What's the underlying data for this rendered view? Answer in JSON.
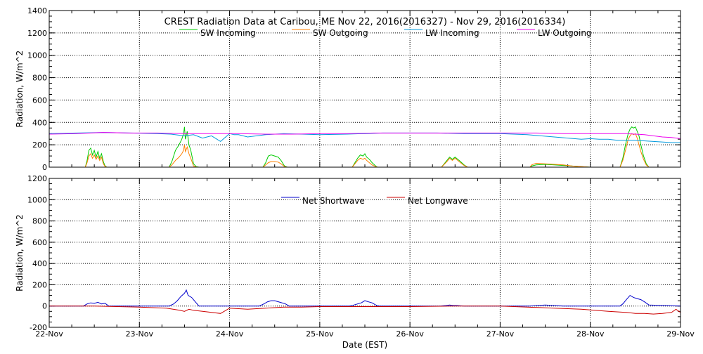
{
  "chart_data": [
    {
      "type": "line",
      "title": "CREST Radiation Data at Caribou, ME   Nov 22, 2016(2016327) - Nov 29, 2016(2016334)",
      "xlabel": "",
      "ylabel": "Radiation, W/m^2",
      "ylim": [
        0,
        1400
      ],
      "yticks": [
        0,
        200,
        400,
        600,
        800,
        1000,
        1200,
        1400
      ],
      "xlim_days": [
        0,
        7
      ],
      "grid": true,
      "legend": "top-center",
      "series": [
        {
          "name": "SW Incoming",
          "color": "#00cc00",
          "x": [
            0.4,
            0.42,
            0.44,
            0.46,
            0.48,
            0.5,
            0.52,
            0.54,
            0.56,
            0.58,
            0.6,
            0.62,
            0.64,
            1.33,
            1.36,
            1.4,
            1.44,
            1.47,
            1.49,
            1.5,
            1.51,
            1.53,
            1.55,
            1.57,
            1.6,
            1.63,
            1.66,
            2.37,
            2.4,
            2.43,
            2.46,
            2.5,
            2.54,
            2.57,
            2.61,
            2.64,
            3.36,
            3.39,
            3.42,
            3.45,
            3.48,
            3.5,
            3.52,
            3.55,
            3.58,
            3.62,
            3.64,
            4.35,
            4.38,
            4.41,
            4.44,
            4.47,
            4.5,
            4.53,
            4.56,
            4.6,
            4.64,
            5.33,
            5.35,
            5.4,
            5.5,
            5.6,
            5.7,
            5.8,
            5.9,
            6.0,
            6.33,
            6.36,
            6.39,
            6.42,
            6.44,
            6.46,
            6.48,
            6.5,
            6.52,
            6.54,
            6.56,
            6.59,
            6.62,
            6.65
          ],
          "y": [
            0,
            60,
            150,
            170,
            110,
            150,
            90,
            140,
            80,
            120,
            50,
            10,
            0,
            0,
            50,
            150,
            200,
            250,
            300,
            360,
            250,
            320,
            200,
            150,
            30,
            5,
            0,
            0,
            40,
            100,
            110,
            100,
            90,
            60,
            10,
            0,
            0,
            40,
            80,
            110,
            100,
            120,
            90,
            70,
            40,
            10,
            0,
            0,
            30,
            60,
            90,
            70,
            90,
            70,
            50,
            20,
            0,
            0,
            10,
            20,
            25,
            20,
            15,
            10,
            5,
            0,
            0,
            80,
            200,
            300,
            340,
            360,
            350,
            360,
            320,
            280,
            200,
            100,
            30,
            0
          ]
        },
        {
          "name": "SW Outgoing",
          "color": "#ff8000",
          "x": [
            0.4,
            0.42,
            0.44,
            0.46,
            0.48,
            0.5,
            0.52,
            0.54,
            0.56,
            0.58,
            0.6,
            0.62,
            0.64,
            1.33,
            1.36,
            1.4,
            1.44,
            1.47,
            1.49,
            1.5,
            1.51,
            1.53,
            1.55,
            1.57,
            1.6,
            1.63,
            1.66,
            2.37,
            2.4,
            2.43,
            2.46,
            2.5,
            2.54,
            2.57,
            2.61,
            2.64,
            3.36,
            3.39,
            3.42,
            3.45,
            3.48,
            3.5,
            3.52,
            3.55,
            3.58,
            3.62,
            3.64,
            4.35,
            4.38,
            4.41,
            4.44,
            4.47,
            4.5,
            4.53,
            4.56,
            4.6,
            4.64,
            5.33,
            5.35,
            5.4,
            5.5,
            5.6,
            5.7,
            5.8,
            5.9,
            6.0,
            6.33,
            6.36,
            6.39,
            6.42,
            6.44,
            6.46,
            6.48,
            6.5,
            6.52,
            6.54,
            6.56,
            6.59,
            6.62,
            6.65
          ],
          "y": [
            0,
            40,
            100,
            120,
            80,
            110,
            70,
            100,
            60,
            90,
            30,
            5,
            0,
            0,
            20,
            60,
            90,
            120,
            150,
            200,
            140,
            180,
            120,
            80,
            10,
            2,
            0,
            0,
            20,
            40,
            50,
            50,
            45,
            30,
            5,
            0,
            0,
            30,
            60,
            80,
            70,
            80,
            60,
            40,
            20,
            5,
            0,
            0,
            25,
            50,
            80,
            60,
            80,
            60,
            40,
            15,
            0,
            0,
            20,
            35,
            30,
            25,
            20,
            10,
            5,
            0,
            0,
            60,
            150,
            250,
            280,
            300,
            290,
            300,
            260,
            200,
            140,
            70,
            20,
            0
          ]
        },
        {
          "name": "LW Incoming",
          "color": "#0099dd",
          "x": [
            0.0,
            0.3,
            0.6,
            0.9,
            1.2,
            1.35,
            1.5,
            1.6,
            1.7,
            1.8,
            1.9,
            2.0,
            2.05,
            2.1,
            2.2,
            2.4,
            2.6,
            2.8,
            3.0,
            3.3,
            3.5,
            3.7,
            4.0,
            4.3,
            4.6,
            5.0,
            5.3,
            5.6,
            5.9,
            6.0,
            6.1,
            6.2,
            6.3,
            6.5,
            6.7,
            6.9,
            7.0
          ],
          "y": [
            300,
            305,
            310,
            305,
            300,
            295,
            280,
            290,
            260,
            280,
            230,
            300,
            290,
            290,
            270,
            290,
            300,
            295,
            290,
            295,
            300,
            305,
            305,
            305,
            300,
            300,
            290,
            270,
            250,
            255,
            250,
            250,
            240,
            240,
            230,
            220,
            220
          ]
        },
        {
          "name": "LW Outgoing",
          "color": "#ee00ee",
          "x": [
            0.0,
            0.3,
            0.6,
            0.9,
            1.2,
            1.5,
            1.8,
            2.1,
            2.4,
            2.7,
            3.0,
            3.3,
            3.6,
            3.9,
            4.2,
            4.5,
            4.8,
            5.1,
            5.4,
            5.7,
            6.0,
            6.2,
            6.4,
            6.6,
            6.8,
            6.9,
            7.0
          ],
          "y": [
            295,
            300,
            310,
            305,
            305,
            300,
            300,
            300,
            295,
            295,
            300,
            300,
            305,
            305,
            305,
            305,
            305,
            305,
            305,
            300,
            300,
            300,
            300,
            290,
            270,
            265,
            255
          ]
        }
      ]
    },
    {
      "type": "line",
      "title": "",
      "xlabel": "Date (EST)",
      "ylabel": "Radiation, W/m^2",
      "ylim": [
        -200,
        1200
      ],
      "yticks": [
        -200,
        0,
        200,
        400,
        600,
        800,
        1000,
        1200
      ],
      "xlim_days": [
        0,
        7
      ],
      "categories": [
        "22-Nov",
        "23-Nov",
        "24-Nov",
        "25-Nov",
        "26-Nov",
        "27-Nov",
        "28-Nov",
        "29-Nov"
      ],
      "grid": true,
      "legend": "top-center",
      "series": [
        {
          "name": "Net Shortwave",
          "color": "#0000cc",
          "x": [
            0.0,
            0.38,
            0.42,
            0.46,
            0.5,
            0.54,
            0.58,
            0.62,
            0.66,
            1.0,
            1.33,
            1.38,
            1.42,
            1.46,
            1.5,
            1.52,
            1.54,
            1.58,
            1.62,
            1.66,
            2.0,
            2.33,
            2.38,
            2.42,
            2.46,
            2.5,
            2.56,
            2.62,
            2.66,
            3.0,
            3.33,
            3.38,
            3.42,
            3.46,
            3.5,
            3.54,
            3.58,
            3.62,
            3.66,
            4.0,
            4.33,
            4.4,
            4.44,
            4.48,
            4.52,
            4.6,
            5.0,
            5.33,
            5.5,
            5.7,
            6.0,
            6.33,
            6.36,
            6.4,
            6.44,
            6.48,
            6.52,
            6.56,
            6.6,
            6.65,
            7.0
          ],
          "y": [
            0,
            0,
            20,
            30,
            25,
            35,
            20,
            25,
            0,
            0,
            0,
            20,
            50,
            90,
            120,
            150,
            100,
            80,
            40,
            0,
            0,
            0,
            20,
            40,
            50,
            50,
            35,
            20,
            0,
            0,
            0,
            10,
            20,
            30,
            50,
            40,
            30,
            10,
            0,
            0,
            0,
            5,
            10,
            5,
            5,
            0,
            0,
            0,
            10,
            0,
            0,
            0,
            20,
            60,
            100,
            80,
            70,
            60,
            40,
            10,
            0
          ]
        },
        {
          "name": "Net Longwave",
          "color": "#cc0000",
          "x": [
            0.0,
            0.5,
            1.0,
            1.3,
            1.45,
            1.5,
            1.55,
            1.6,
            1.7,
            1.8,
            1.9,
            2.0,
            2.2,
            2.4,
            2.6,
            2.8,
            3.0,
            3.5,
            4.0,
            4.5,
            5.0,
            5.3,
            5.6,
            5.9,
            6.2,
            6.4,
            6.5,
            6.6,
            6.7,
            6.8,
            6.9,
            6.95,
            7.0
          ],
          "y": [
            0,
            0,
            -10,
            -20,
            -40,
            -50,
            -30,
            -40,
            -50,
            -60,
            -70,
            -20,
            -30,
            -20,
            -10,
            -10,
            -5,
            -5,
            -5,
            0,
            0,
            -10,
            -20,
            -30,
            -50,
            -60,
            -70,
            -70,
            -75,
            -70,
            -60,
            -30,
            -60
          ]
        }
      ]
    }
  ]
}
